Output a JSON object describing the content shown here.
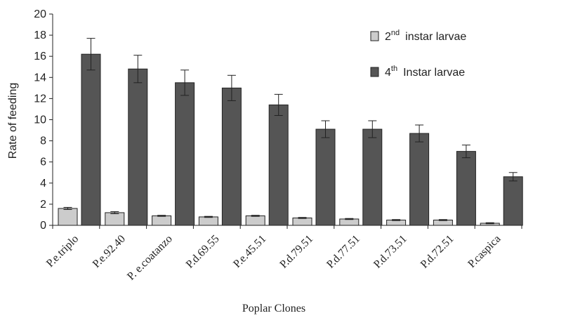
{
  "chart_data": {
    "type": "bar",
    "title": "",
    "xlabel": "Poplar Clones",
    "ylabel": "Rate of feeding",
    "ylim": [
      0,
      20
    ],
    "yticks": [
      0,
      2,
      4,
      6,
      8,
      10,
      12,
      14,
      16,
      18,
      20
    ],
    "grid": false,
    "legend_position": "top-right",
    "categories": [
      "P.e.triplo",
      "P.e.92.40",
      "P. e.coatanzo",
      "P.d.69.55",
      "P.e.45.51",
      "P.d.79.51",
      "P.d.77.51",
      "P.d.73.51",
      "P.d.72.51",
      "P.caspica"
    ],
    "series": [
      {
        "name": "2nd instar larvae",
        "legend_base": "2",
        "legend_sup": "nd",
        "legend_rest": "instar larvae",
        "color": "#cccccc",
        "values": [
          1.6,
          1.2,
          0.9,
          0.8,
          0.9,
          0.7,
          0.6,
          0.5,
          0.5,
          0.2
        ],
        "errors": [
          0.1,
          0.1,
          0.05,
          0.05,
          0.05,
          0.05,
          0.05,
          0.05,
          0.05,
          0.05
        ]
      },
      {
        "name": "4th Instar larvae",
        "legend_base": "4",
        "legend_sup": "th",
        "legend_rest": "Instar larvae",
        "color": "#555555",
        "values": [
          16.2,
          14.8,
          13.5,
          13.0,
          11.4,
          9.1,
          9.1,
          8.7,
          7.0,
          4.6
        ],
        "errors": [
          1.5,
          1.3,
          1.2,
          1.2,
          1.0,
          0.8,
          0.8,
          0.8,
          0.6,
          0.4
        ]
      }
    ]
  }
}
